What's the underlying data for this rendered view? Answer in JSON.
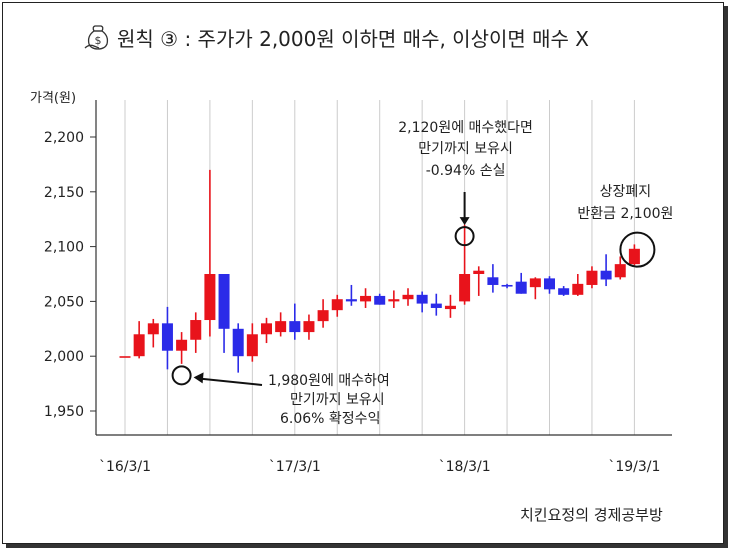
{
  "title": "원칙 ③ :  주가가 2,000원 이하면 매수, 이상이면 매수 X",
  "title_icon": "money-bag-icon",
  "footer": "치킨요정의 경제공부방",
  "colors": {
    "up": "#e8131b",
    "down": "#2b2be8",
    "grid": "#cccccc",
    "axis": "#333333"
  },
  "chart_data": {
    "type": "candlestick",
    "ylabel": "가격(원)",
    "ylim": [
      1950,
      2200
    ],
    "yticks": [
      1950,
      2000,
      2050,
      2100,
      2150,
      2200
    ],
    "ytick_labels": [
      "1,950",
      "2,000",
      "2,050",
      "2,100",
      "2,150",
      "2,200"
    ],
    "x_ticks": [
      {
        "index": 0,
        "label": "`16/3/1"
      },
      {
        "index": 12,
        "label": "`17/3/1"
      },
      {
        "index": 24,
        "label": "`18/3/1"
      },
      {
        "index": 36,
        "label": "`19/3/1"
      }
    ],
    "x_range": [
      -1,
      37
    ],
    "grid": "vertical",
    "candles": [
      {
        "open": 2000,
        "close": 2000,
        "high": 2000,
        "low": 2000
      },
      {
        "open": 2000,
        "close": 2020,
        "high": 2032,
        "low": 1998
      },
      {
        "open": 2020,
        "close": 2030,
        "high": 2034,
        "low": 2008
      },
      {
        "open": 2030,
        "close": 2005,
        "high": 2045,
        "low": 1988
      },
      {
        "open": 2005,
        "close": 2015,
        "high": 2022,
        "low": 1993
      },
      {
        "open": 2015,
        "close": 2033,
        "high": 2040,
        "low": 2003
      },
      {
        "open": 2033,
        "close": 2075,
        "high": 2170,
        "low": 2018
      },
      {
        "open": 2075,
        "close": 2025,
        "high": 2075,
        "low": 2003
      },
      {
        "open": 2025,
        "close": 2000,
        "high": 2030,
        "low": 1985
      },
      {
        "open": 2000,
        "close": 2020,
        "high": 2030,
        "low": 1995
      },
      {
        "open": 2020,
        "close": 2030,
        "high": 2035,
        "low": 2012
      },
      {
        "open": 2022,
        "close": 2032,
        "high": 2040,
        "low": 2018
      },
      {
        "open": 2032,
        "close": 2022,
        "high": 2048,
        "low": 2015
      },
      {
        "open": 2022,
        "close": 2032,
        "high": 2038,
        "low": 2015
      },
      {
        "open": 2032,
        "close": 2042,
        "high": 2052,
        "low": 2026
      },
      {
        "open": 2042,
        "close": 2052,
        "high": 2056,
        "low": 2036
      },
      {
        "open": 2052,
        "close": 2050,
        "high": 2065,
        "low": 2046
      },
      {
        "open": 2050,
        "close": 2055,
        "high": 2062,
        "low": 2044
      },
      {
        "open": 2055,
        "close": 2047,
        "high": 2057,
        "low": 2047
      },
      {
        "open": 2050,
        "close": 2052,
        "high": 2060,
        "low": 2044
      },
      {
        "open": 2052,
        "close": 2056,
        "high": 2062,
        "low": 2046
      },
      {
        "open": 2056,
        "close": 2048,
        "high": 2059,
        "low": 2040
      },
      {
        "open": 2048,
        "close": 2044,
        "high": 2057,
        "low": 2037
      },
      {
        "open": 2043,
        "close": 2046,
        "high": 2056,
        "low": 2035
      },
      {
        "open": 2050,
        "close": 2075,
        "high": 2120,
        "low": 2047
      },
      {
        "open": 2075,
        "close": 2078,
        "high": 2082,
        "low": 2055
      },
      {
        "open": 2072,
        "close": 2065,
        "high": 2084,
        "low": 2058
      },
      {
        "open": 2065,
        "close": 2064,
        "high": 2066,
        "low": 2062
      },
      {
        "open": 2068,
        "close": 2057,
        "high": 2076,
        "low": 2057
      },
      {
        "open": 2063,
        "close": 2071,
        "high": 2072,
        "low": 2052
      },
      {
        "open": 2071,
        "close": 2061,
        "high": 2073,
        "low": 2057
      },
      {
        "open": 2062,
        "close": 2056,
        "high": 2064,
        "low": 2055
      },
      {
        "open": 2056,
        "close": 2066,
        "high": 2075,
        "low": 2055
      },
      {
        "open": 2065,
        "close": 2078,
        "high": 2082,
        "low": 2062
      },
      {
        "open": 2078,
        "close": 2070,
        "high": 2093,
        "low": 2064
      },
      {
        "open": 2072,
        "close": 2084,
        "high": 2091,
        "low": 2070
      },
      {
        "open": 2084,
        "close": 2098,
        "high": 2102,
        "low": 2083
      }
    ],
    "annotations": [
      {
        "text": "1,980원에 매수하여\n만기까지 보유시\n6.06% 확정수익",
        "target_index": 4,
        "target_value": 1988
      },
      {
        "text": "2,120원에 매수했다면\n만기까지 보유시\n-0.94% 손실",
        "target_index": 24,
        "target_value": 2115
      },
      {
        "text": "상장폐지\n반환금 2,100원",
        "target_index": 36,
        "target_value": 2100
      }
    ]
  }
}
